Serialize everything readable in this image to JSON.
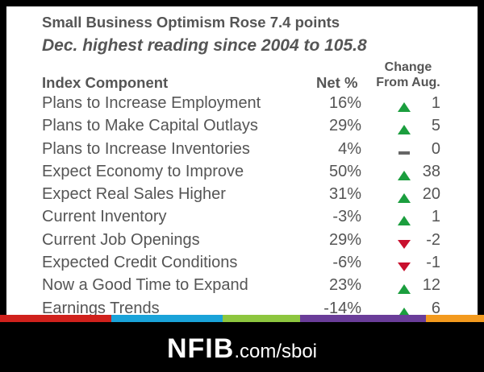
{
  "title": "Small Business Optimism Rose 7.4 points",
  "subtitle": "Dec. highest reading since 2004 to 105.8",
  "table": {
    "headers": {
      "component": "Index Component",
      "net": "Net %",
      "change_line1": "Change",
      "change_line2": "From Aug."
    },
    "rows": [
      {
        "component": "Plans to Increase Employment",
        "net": "16%",
        "direction": "up",
        "change": "1"
      },
      {
        "component": "Plans to Make Capital Outlays",
        "net": "29%",
        "direction": "up",
        "change": "5"
      },
      {
        "component": "Plans to Increase Inventories",
        "net": "4%",
        "direction": "flat",
        "change": "0"
      },
      {
        "component": "Expect Economy to Improve",
        "net": "50%",
        "direction": "up",
        "change": "38"
      },
      {
        "component": "Expect Real Sales Higher",
        "net": "31%",
        "direction": "up",
        "change": "20"
      },
      {
        "component": "Current Inventory",
        "net": "-3%",
        "direction": "up",
        "change": "1"
      },
      {
        "component": "Current Job Openings",
        "net": "29%",
        "direction": "down",
        "change": "-2"
      },
      {
        "component": "Expected Credit Conditions",
        "net": "-6%",
        "direction": "down",
        "change": "-1"
      },
      {
        "component": "Now a Good Time to Expand",
        "net": "23%",
        "direction": "up",
        "change": "12"
      },
      {
        "component": "Earnings Trends",
        "net": "-14%",
        "direction": "up",
        "change": "6"
      }
    ]
  },
  "colors": {
    "up": "#1b9e3e",
    "down": "#c8102e",
    "flat": "#666666",
    "stripe": [
      "#d0211c",
      "#1aa3d9",
      "#8dc63f",
      "#6a3d99",
      "#f39a1e"
    ]
  },
  "footer": {
    "brand": "NFIB",
    "site": ".com/sboi"
  }
}
